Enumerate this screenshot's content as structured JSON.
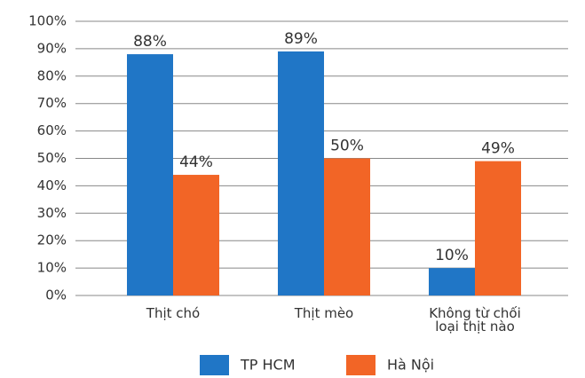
{
  "chart_data": {
    "type": "bar",
    "categories": [
      "Thịt chó",
      "Thịt mèo",
      "Không từ chối loại thịt nào"
    ],
    "series": [
      {
        "name": "TP HCM",
        "color": "#2076c6",
        "values": [
          88,
          89,
          10
        ],
        "value_labels": [
          "88%",
          "89%",
          "10%"
        ]
      },
      {
        "name": "Hà Nội",
        "color": "#f26526",
        "values": [
          44,
          50,
          49
        ],
        "value_labels": [
          "44%",
          "50%",
          "49%"
        ]
      }
    ],
    "ylim": [
      0,
      100
    ],
    "yticks": [
      {
        "value": 0,
        "label": "0%"
      },
      {
        "value": 10,
        "label": "10%"
      },
      {
        "value": 20,
        "label": "20%"
      },
      {
        "value": 30,
        "label": "30%"
      },
      {
        "value": 40,
        "label": "40%"
      },
      {
        "value": 50,
        "label": "50%"
      },
      {
        "value": 60,
        "label": "60%"
      },
      {
        "value": 70,
        "label": "70%"
      },
      {
        "value": 80,
        "label": "80%"
      },
      {
        "value": 90,
        "label": "90%"
      },
      {
        "value": 100,
        "label": "100%"
      }
    ],
    "grid": true,
    "legend": "bottom"
  }
}
